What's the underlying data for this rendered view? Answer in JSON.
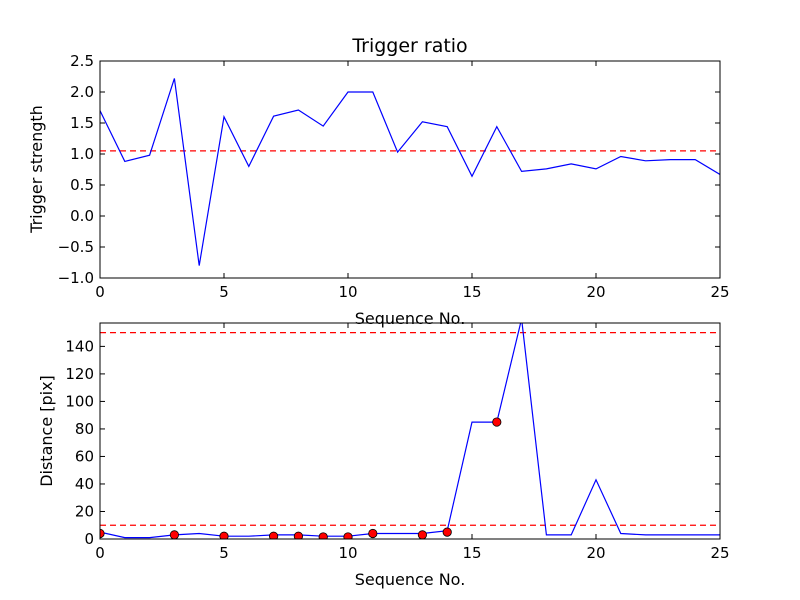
{
  "colors": {
    "line": "#0000ff",
    "threshold": "#ff0000",
    "marker": "#ff0000"
  },
  "chart_data": [
    {
      "type": "line",
      "title": "Trigger ratio",
      "xlabel": "Sequence No.",
      "ylabel": "Trigger strength",
      "xlim": [
        0,
        25
      ],
      "ylim": [
        -1.0,
        2.5
      ],
      "xticks": [
        0,
        5,
        10,
        15,
        20,
        25
      ],
      "yticks": [
        -1.0,
        -0.5,
        0.0,
        0.5,
        1.0,
        1.5,
        2.0,
        2.5
      ],
      "xtick_labels": [
        "0",
        "5",
        "10",
        "15",
        "20",
        "25"
      ],
      "ytick_labels": [
        "−1.0",
        "−0.5",
        "0.0",
        "0.5",
        "1.0",
        "1.5",
        "2.0",
        "2.5"
      ],
      "grid": false,
      "series": [
        {
          "x": [
            0,
            1,
            2,
            3,
            4,
            5,
            6,
            7,
            8,
            9,
            10,
            11,
            12,
            13,
            14,
            15,
            16,
            17,
            18,
            19,
            20,
            21,
            22,
            23,
            24,
            25
          ],
          "values": [
            1.7,
            0.88,
            0.98,
            2.22,
            -0.8,
            1.6,
            0.8,
            1.61,
            1.71,
            1.45,
            2.0,
            2.0,
            1.03,
            1.52,
            1.44,
            0.64,
            1.44,
            0.72,
            0.76,
            0.84,
            0.76,
            0.96,
            0.89,
            0.91,
            0.91,
            0.67
          ]
        }
      ],
      "hlines": [
        1.05
      ]
    },
    {
      "type": "line",
      "title": "",
      "xlabel": "Sequence No.",
      "ylabel": "Distance [pix]",
      "xlim": [
        0,
        25
      ],
      "ylim": [
        0,
        157
      ],
      "xticks": [
        0,
        5,
        10,
        15,
        20,
        25
      ],
      "yticks": [
        0,
        20,
        40,
        60,
        80,
        100,
        120,
        140
      ],
      "xtick_labels": [
        "0",
        "5",
        "10",
        "15",
        "20",
        "25"
      ],
      "ytick_labels": [
        "0",
        "20",
        "40",
        "60",
        "80",
        "100",
        "120",
        "140"
      ],
      "grid": false,
      "series": [
        {
          "x": [
            0,
            1,
            2,
            3,
            4,
            5,
            6,
            7,
            8,
            9,
            10,
            11,
            12,
            13,
            14,
            15,
            16,
            17,
            18,
            19,
            20,
            21,
            22,
            23,
            24,
            25
          ],
          "values": [
            5,
            1,
            1,
            3,
            4,
            2,
            2,
            3,
            3,
            2,
            2,
            4,
            4,
            4,
            6,
            85,
            85,
            160,
            3,
            3,
            43,
            4,
            3,
            3,
            3,
            3
          ]
        }
      ],
      "markers": {
        "x": [
          0,
          3,
          5,
          7,
          8,
          9,
          10,
          11,
          13,
          14,
          16
        ],
        "values": [
          4,
          3,
          2,
          2,
          2,
          1.5,
          1.5,
          4,
          3,
          5,
          85
        ]
      },
      "hlines": [
        150,
        10
      ]
    }
  ]
}
